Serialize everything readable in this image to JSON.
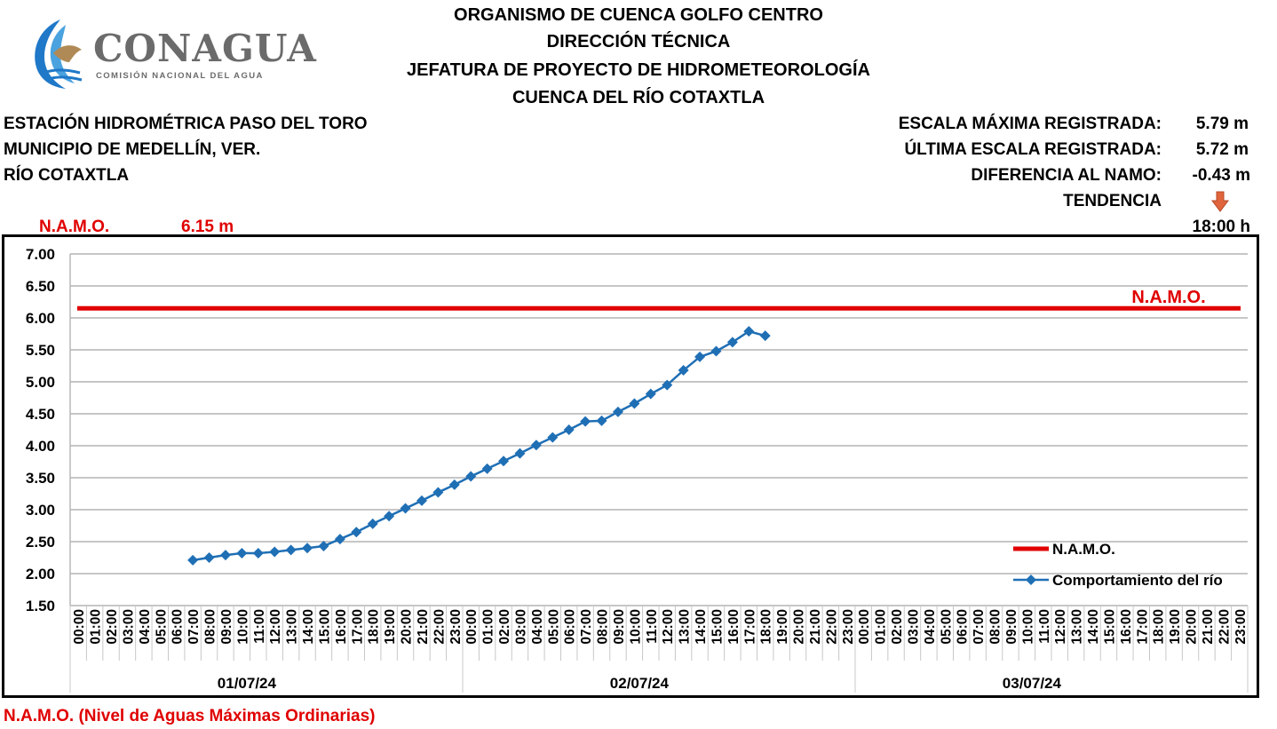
{
  "logo": {
    "name": "CONAGUA",
    "subtitle": "COMISIÓN NACIONAL DEL AGUA"
  },
  "header": {
    "line1": "ORGANISMO DE CUENCA GOLFO CENTRO",
    "line2": "DIRECCIÓN TÉCNICA",
    "line3": "JEFATURA DE PROYECTO DE HIDROMETEOROLOGÍA",
    "line4": "CUENCA DEL RÍO COTAXTLA"
  },
  "station": {
    "name": "ESTACIÓN HIDROMÉTRICA PASO DEL TORO",
    "municipality": "MUNICIPIO DE MEDELLÍN, VER.",
    "river": "RÍO COTAXTLA"
  },
  "stats": {
    "max_label": "ESCALA MÁXIMA REGISTRADA:",
    "max_value": "5.79 m",
    "last_label": "ÚLTIMA ESCALA REGISTRADA:",
    "last_value": "5.72 m",
    "diff_label": "DIFERENCIA AL NAMO:",
    "diff_value": "-0.43 m",
    "trend_label": "TENDENCIA",
    "trend_icon": "arrow-down-icon",
    "trend_color": "#e0643c",
    "time": "18:00 h"
  },
  "namo": {
    "label": "N.A.M.O.",
    "value": "6.15 m",
    "color": "#e00000"
  },
  "footnote": "N.A.M.O. (Nivel de Aguas Máximas Ordinarias)",
  "chart_data": {
    "type": "line",
    "ylim": [
      1.5,
      7.0
    ],
    "yticks": [
      "7.00",
      "6.50",
      "6.00",
      "5.50",
      "5.00",
      "4.50",
      "4.00",
      "3.50",
      "3.00",
      "2.50",
      "2.00",
      "1.50"
    ],
    "ytick_values": [
      7.0,
      6.5,
      6.0,
      5.5,
      5.0,
      4.5,
      4.0,
      3.5,
      3.0,
      2.5,
      2.0,
      1.5
    ],
    "hours": [
      "00:00",
      "01:00",
      "02:00",
      "03:00",
      "04:00",
      "05:00",
      "06:00",
      "07:00",
      "08:00",
      "09:00",
      "10:00",
      "11:00",
      "12:00",
      "13:00",
      "14:00",
      "15:00",
      "16:00",
      "17:00",
      "18:00",
      "19:00",
      "20:00",
      "21:00",
      "22:00",
      "23:00"
    ],
    "days": [
      "01/07/24",
      "02/07/24",
      "03/07/24"
    ],
    "grid": true,
    "legend_position": "bottom-right",
    "namo_label": "N.A.M.O.",
    "series": [
      {
        "name": "N.A.M.O.",
        "color": "#e00000",
        "constant": 6.15
      },
      {
        "name": "Comportamiento del río",
        "color": "#1f6fb5",
        "start_index": 7,
        "values": [
          2.21,
          2.25,
          2.29,
          2.32,
          2.32,
          2.34,
          2.37,
          2.4,
          2.43,
          2.54,
          2.65,
          2.78,
          2.9,
          3.02,
          3.14,
          3.27,
          3.39,
          3.52,
          3.64,
          3.76,
          3.88,
          4.01,
          4.13,
          4.25,
          4.38,
          4.39,
          4.53,
          4.66,
          4.81,
          4.95,
          5.18,
          5.39,
          5.48,
          5.62,
          5.79,
          5.72
        ]
      }
    ]
  }
}
